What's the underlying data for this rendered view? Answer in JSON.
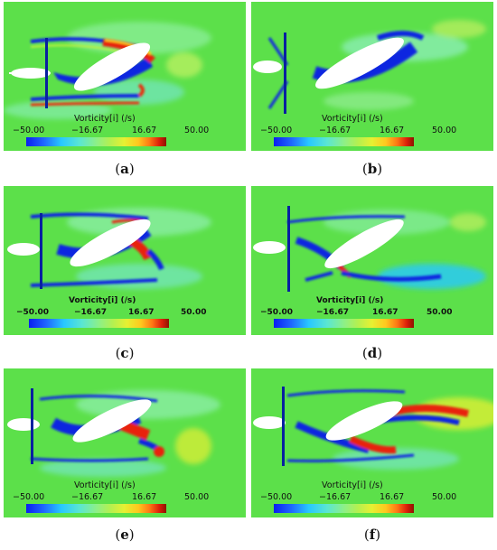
{
  "colorbar": {
    "title": "Vorticity[i] (/s)",
    "ticks": [
      "−50.00",
      "−16.67",
      "16.67",
      "50.00"
    ],
    "colors": [
      "#0a1ef0",
      "#1e64ff",
      "#28c8ff",
      "#5ae6d2",
      "#8cf088",
      "#b4f050",
      "#e6f032",
      "#ffc81e",
      "#ff7814",
      "#dc1e0a",
      "#8c1400"
    ]
  },
  "colors": {
    "background_field": "#5ce04a",
    "negative_vorticity": "#1028e0",
    "positive_vorticity": "#e82010",
    "body": "#ffffff"
  },
  "panels": [
    {
      "label": "a",
      "legend_style": "plain"
    },
    {
      "label": "b",
      "legend_style": "plain"
    },
    {
      "label": "c",
      "legend_style": "bold"
    },
    {
      "label": "d",
      "legend_style": "bold"
    },
    {
      "label": "e",
      "legend_style": "plain"
    },
    {
      "label": "f",
      "legend_style": "plain"
    }
  ]
}
